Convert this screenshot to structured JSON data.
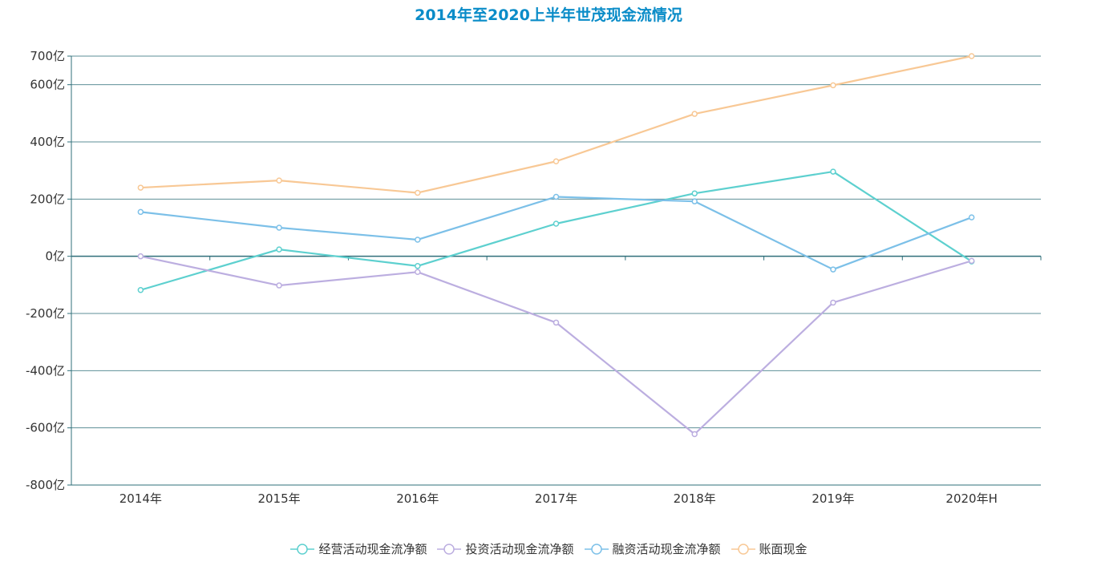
{
  "chart_data": {
    "type": "line",
    "title": "2014年至2020上半年世茂现金流情况",
    "categories": [
      "2014年",
      "2015年",
      "2016年",
      "2017年",
      "2018年",
      "2019年",
      "2020年H"
    ],
    "y_ticks": [
      {
        "value": -800,
        "label": "-800亿"
      },
      {
        "value": -600,
        "label": "-600亿"
      },
      {
        "value": -400,
        "label": "-400亿"
      },
      {
        "value": -200,
        "label": "-200亿"
      },
      {
        "value": 0,
        "label": "0亿"
      },
      {
        "value": 200,
        "label": "200亿"
      },
      {
        "value": 400,
        "label": "400亿"
      },
      {
        "value": 600,
        "label": "600亿"
      },
      {
        "value": 700,
        "label": "700亿"
      }
    ],
    "ylim": [
      -800,
      700
    ],
    "grid": true,
    "legend_position": "bottom-center",
    "series": [
      {
        "name": "经营活动现金流净额",
        "color": "#5dd0cf",
        "values": [
          -118,
          24,
          -34,
          114,
          220,
          296,
          -18
        ]
      },
      {
        "name": "投资活动现金流净额",
        "color": "#bcaee0",
        "values": [
          0,
          -102,
          -55,
          -232,
          -622,
          -162,
          -16
        ]
      },
      {
        "name": "融资活动现金流净额",
        "color": "#7cc0e8",
        "values": [
          155,
          100,
          58,
          208,
          192,
          -46,
          136
        ]
      },
      {
        "name": "账面现金",
        "color": "#f8c895",
        "values": [
          240,
          265,
          222,
          332,
          498,
          598,
          700
        ]
      }
    ]
  }
}
